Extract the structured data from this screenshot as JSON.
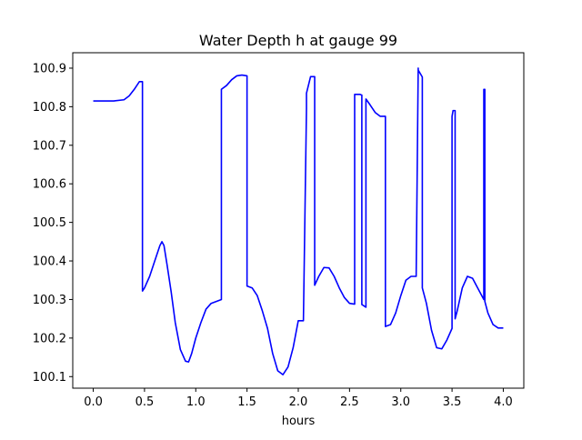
{
  "chart_data": {
    "type": "line",
    "title": "Water Depth h at gauge 99",
    "xlabel": "hours",
    "ylabel": "",
    "xlim": [
      -0.2,
      4.2
    ],
    "ylim": [
      100.07,
      100.94
    ],
    "xticks": [
      {
        "value": 0.0,
        "label": "0.0"
      },
      {
        "value": 0.5,
        "label": "0.5"
      },
      {
        "value": 1.0,
        "label": "1.0"
      },
      {
        "value": 1.5,
        "label": "1.5"
      },
      {
        "value": 2.0,
        "label": "2.0"
      },
      {
        "value": 2.5,
        "label": "2.5"
      },
      {
        "value": 3.0,
        "label": "3.0"
      },
      {
        "value": 3.5,
        "label": "3.5"
      },
      {
        "value": 4.0,
        "label": "4.0"
      }
    ],
    "yticks": [
      {
        "value": 100.1,
        "label": "100.1"
      },
      {
        "value": 100.2,
        "label": "100.2"
      },
      {
        "value": 100.3,
        "label": "100.3"
      },
      {
        "value": 100.4,
        "label": "100.4"
      },
      {
        "value": 100.5,
        "label": "100.5"
      },
      {
        "value": 100.6,
        "label": "100.6"
      },
      {
        "value": 100.7,
        "label": "100.7"
      },
      {
        "value": 100.8,
        "label": "100.8"
      },
      {
        "value": 100.9,
        "label": "100.9"
      }
    ],
    "grid": false,
    "series": [
      {
        "color": "#0000ff",
        "x": [
          0.0,
          0.1,
          0.2,
          0.3,
          0.35,
          0.4,
          0.45,
          0.48,
          0.48,
          0.5,
          0.55,
          0.6,
          0.65,
          0.67,
          0.69,
          0.72,
          0.76,
          0.8,
          0.85,
          0.9,
          0.93,
          0.96,
          1.0,
          1.05,
          1.1,
          1.15,
          1.2,
          1.25,
          1.25,
          1.3,
          1.35,
          1.4,
          1.45,
          1.5,
          1.5,
          1.55,
          1.6,
          1.65,
          1.7,
          1.75,
          1.8,
          1.85,
          1.9,
          1.95,
          2.0,
          2.05,
          2.08,
          2.08,
          2.12,
          2.16,
          2.16,
          2.2,
          2.25,
          2.3,
          2.35,
          2.4,
          2.45,
          2.5,
          2.55,
          2.55,
          2.6,
          2.62,
          2.62,
          2.66,
          2.66,
          2.7,
          2.75,
          2.8,
          2.85,
          2.85,
          2.9,
          2.95,
          3.0,
          3.05,
          3.1,
          3.15,
          3.17,
          3.17,
          3.21,
          3.21,
          3.25,
          3.3,
          3.35,
          3.4,
          3.45,
          3.5,
          3.5,
          3.51,
          3.51,
          3.53,
          3.53,
          3.55,
          3.6,
          3.65,
          3.7,
          3.75,
          3.8,
          3.81,
          3.81,
          3.82,
          3.82,
          3.85,
          3.9,
          3.95,
          4.0
        ],
        "y": [
          100.815,
          100.815,
          100.815,
          100.818,
          100.828,
          100.845,
          100.865,
          100.865,
          100.322,
          100.33,
          100.36,
          100.4,
          100.44,
          100.45,
          100.44,
          100.39,
          100.32,
          100.24,
          100.17,
          100.14,
          100.138,
          100.16,
          100.2,
          100.24,
          100.275,
          100.29,
          100.295,
          100.3,
          100.845,
          100.855,
          100.87,
          100.88,
          100.882,
          100.88,
          100.335,
          100.33,
          100.31,
          100.27,
          100.225,
          100.16,
          100.115,
          100.105,
          100.125,
          100.175,
          100.245,
          100.245,
          100.795,
          100.835,
          100.878,
          100.878,
          100.337,
          100.36,
          100.383,
          100.382,
          100.36,
          100.33,
          100.305,
          100.29,
          100.288,
          100.832,
          100.832,
          100.83,
          100.287,
          100.28,
          100.82,
          100.805,
          100.785,
          100.775,
          100.775,
          100.23,
          100.235,
          100.265,
          100.31,
          100.35,
          100.36,
          100.36,
          100.9,
          100.895,
          100.877,
          100.33,
          100.29,
          100.22,
          100.175,
          100.172,
          100.195,
          100.225,
          100.775,
          100.79,
          100.79,
          100.79,
          100.25,
          100.27,
          100.33,
          100.36,
          100.355,
          100.33,
          100.305,
          100.3,
          100.845,
          100.845,
          100.295,
          100.265,
          100.235,
          100.226,
          100.226
        ]
      }
    ]
  }
}
